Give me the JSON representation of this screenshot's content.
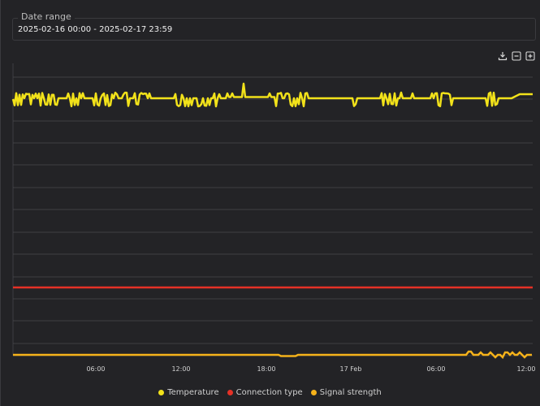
{
  "date_range": {
    "label": "Date range",
    "value": "2025-02-16 00:00 - 2025-02-17 23:59"
  },
  "toolbar": {
    "download_icon": "download-icon",
    "zoom_out_icon": "minus-square-icon",
    "zoom_in_icon": "plus-square-icon"
  },
  "chart_data": {
    "type": "line",
    "x_ticks": [
      "06:00",
      "12:00",
      "18:00",
      "17 Feb",
      "06:00",
      "12:00"
    ],
    "grid": true,
    "legend_position": "bottom",
    "series": [
      {
        "name": "Temperature",
        "color": "#f2e21a"
      },
      {
        "name": "Connection type",
        "color": "#e53126"
      },
      {
        "name": "Signal strength",
        "color": "#f5b21a"
      }
    ]
  },
  "colors": {
    "background": "#232326",
    "grid": "#4a4a4e",
    "temperature": "#f2e21a",
    "connection_type": "#e53126",
    "signal_strength": "#f5b21a"
  }
}
